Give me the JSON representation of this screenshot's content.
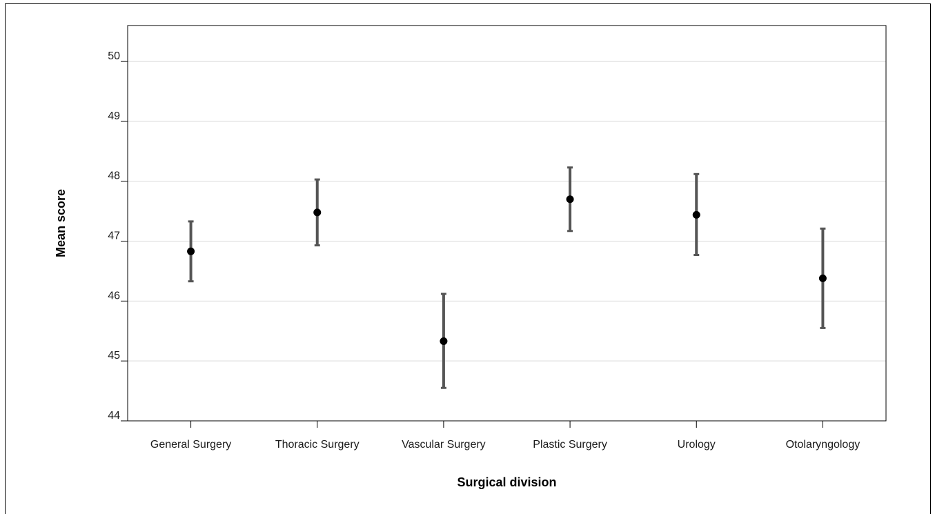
{
  "chart_data": {
    "type": "scatter",
    "variant": "mean-with-error-bars",
    "title": "",
    "xlabel": "Surgical division",
    "ylabel": "Mean score",
    "categories": [
      "General Surgery",
      "Thoracic Surgery",
      "Vascular Surgery",
      "Plastic Surgery",
      "Urology",
      "Otolaryngology"
    ],
    "series": [
      {
        "values": [
          46.83,
          47.48,
          45.33,
          47.7,
          47.44,
          46.38
        ],
        "lower": [
          46.33,
          46.93,
          44.55,
          47.17,
          46.77,
          45.55
        ],
        "upper": [
          47.33,
          48.03,
          46.12,
          48.23,
          48.12,
          47.21
        ]
      }
    ],
    "ylim": [
      44,
      50.6
    ],
    "yticks": [
      44,
      45,
      46,
      47,
      48,
      49,
      50
    ],
    "grid": "horizontal",
    "legend": "none",
    "colors": {
      "point": "#000000",
      "errorbar": "#555555",
      "grid": "#d9d9d9",
      "axis": "#000000"
    }
  }
}
